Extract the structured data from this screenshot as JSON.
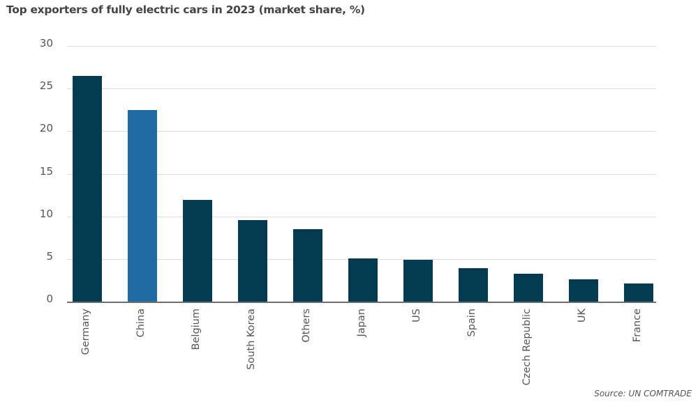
{
  "title": "Top exporters of fully electric cars in 2023 (market share, %)",
  "source": "Source: UN COMTRADE",
  "colors": {
    "default_bar": "#033b50",
    "highlight_bar": "#216ba5",
    "gridline": "#dcdcdc",
    "axis": "#6e6e6e",
    "text": "#555555"
  },
  "chart_data": {
    "type": "bar",
    "title": "Top exporters of fully electric cars in 2023 (market share, %)",
    "xlabel": "",
    "ylabel": "",
    "ylim": [
      0,
      30
    ],
    "yticks": [
      0,
      5,
      10,
      15,
      20,
      25,
      30
    ],
    "grid": true,
    "legend": null,
    "categories": [
      "Germany",
      "China",
      "Belgium",
      "South Korea",
      "Others",
      "Japan",
      "US",
      "Spain",
      "Czech Republic",
      "UK",
      "France"
    ],
    "values": [
      26.5,
      22.5,
      11.9,
      9.6,
      8.5,
      5.1,
      4.9,
      3.9,
      3.3,
      2.6,
      2.1
    ],
    "highlighted": [
      "China"
    ],
    "source": "Source: UN COMTRADE"
  }
}
